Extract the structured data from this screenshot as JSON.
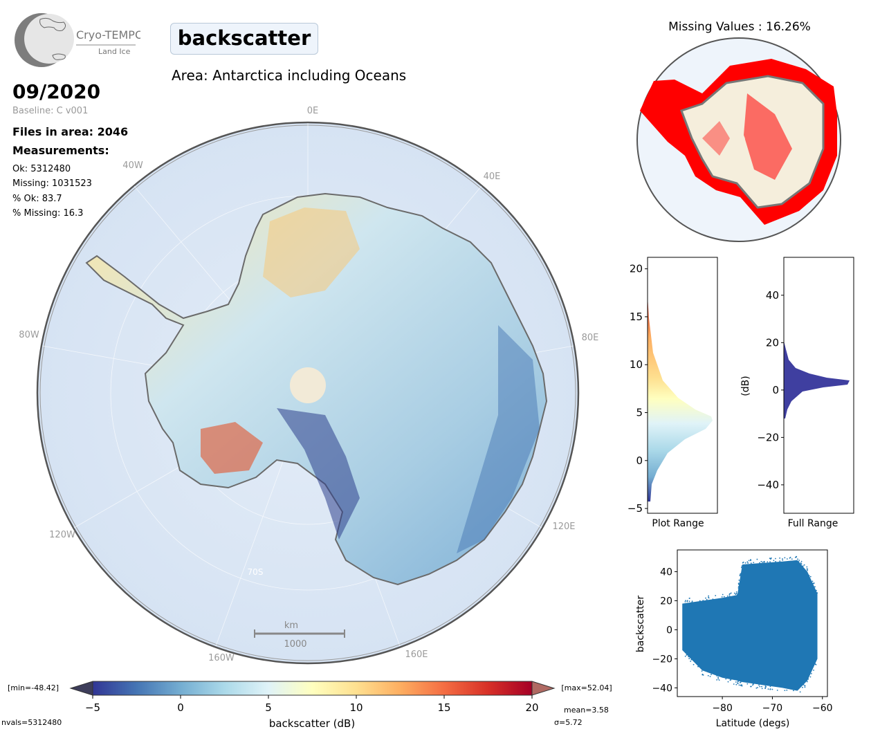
{
  "logo": {
    "name": "Cryo-TEMPO",
    "sub": "Land Ice"
  },
  "title": "backscatter",
  "area": "Area: Antarctica including Oceans",
  "date": "09/2020",
  "baseline": "Baseline: C v001",
  "files": "Files in area: 2046",
  "measurements": {
    "heading": "Measurements:",
    "ok": "Ok: 5312480",
    "missing": "Missing: 1031523",
    "pct_ok": "% Ok: 83.7",
    "pct_missing": "% Missing: 16.3"
  },
  "map": {
    "lon_labels": {
      "l0": "0E",
      "l40w": "40W",
      "l40e": "40E",
      "l80w": "80W",
      "l80e": "80E",
      "l120w": "120W",
      "l120e": "120E",
      "l160w": "160W",
      "l160e": "160E"
    },
    "lat_label": "70S",
    "scale_unit": "km",
    "scale_value": "1000"
  },
  "missing_map": {
    "title": "Missing Values : 16.26%",
    "missing_color": "#ff0000",
    "data_color": "#f5eedc"
  },
  "colorbar": {
    "label": "backscatter (dB)",
    "ticks": [
      "−5",
      "0",
      "5",
      "10",
      "15",
      "20"
    ],
    "min_label": "[min=-48.42]",
    "max_label": "[max=52.04]",
    "nvals": "nvals=5312480",
    "mean": "mean=3.58",
    "sigma": "σ=5.72",
    "colors": [
      "#313695",
      "#4575b4",
      "#74add1",
      "#abd9e9",
      "#e0f3f8",
      "#ffffbf",
      "#fee090",
      "#fdae61",
      "#f46d43",
      "#d73027",
      "#a50026"
    ]
  },
  "hist_plot_range": {
    "xlabel": "Plot Range",
    "yticks": [
      "20",
      "15",
      "10",
      "5",
      "0",
      "−5"
    ],
    "ylim": [
      -5.5,
      21.2
    ]
  },
  "hist_full_range": {
    "xlabel": "Full Range",
    "ylabel": "(dB)",
    "yticks": [
      "40",
      "20",
      "0",
      "−20",
      "−40"
    ],
    "ylim": [
      -52,
      56
    ],
    "color": "#3f3fa0"
  },
  "chart_data": {
    "type": "scatter",
    "xlabel": "Latitude (degs)",
    "ylabel": "backscatter",
    "xlim": [
      -89,
      -59
    ],
    "ylim": [
      -46,
      55
    ],
    "xticks": [
      "−80",
      "−70",
      "−60"
    ],
    "yticks": [
      "40",
      "20",
      "0",
      "−20",
      "−40"
    ],
    "color": "#1f77b4",
    "envelope": [
      {
        "lat": -88,
        "min": -14,
        "max": 18
      },
      {
        "lat": -84,
        "min": -28,
        "max": 20
      },
      {
        "lat": -80,
        "min": -33,
        "max": 22
      },
      {
        "lat": -77,
        "min": -35,
        "max": 24
      },
      {
        "lat": -76,
        "min": -36,
        "max": 45
      },
      {
        "lat": -72,
        "min": -38,
        "max": 46
      },
      {
        "lat": -68,
        "min": -40,
        "max": 47
      },
      {
        "lat": -65,
        "min": -42,
        "max": 48
      },
      {
        "lat": -63,
        "min": -35,
        "max": 40
      },
      {
        "lat": -61,
        "min": -20,
        "max": 25
      }
    ]
  }
}
